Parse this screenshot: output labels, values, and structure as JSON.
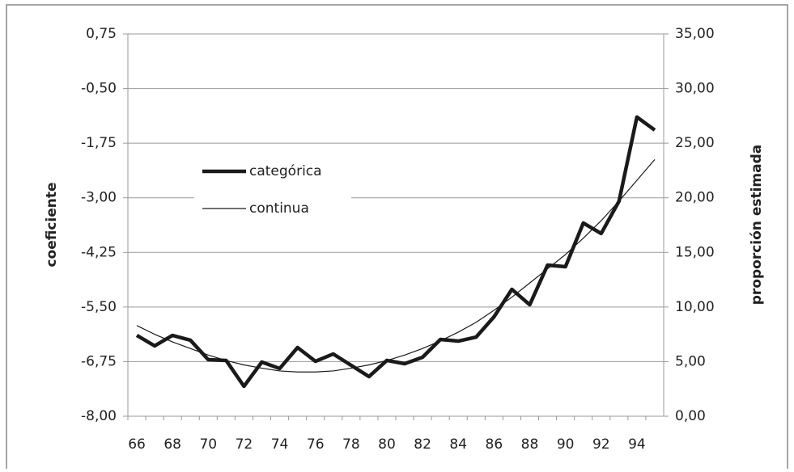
{
  "chart_data": {
    "type": "line",
    "categories": [
      "66",
      null,
      "68",
      null,
      "70",
      null,
      "72",
      null,
      "74",
      null,
      "76",
      null,
      "78",
      null,
      "80",
      null,
      "82",
      null,
      "84",
      null,
      "86",
      null,
      "88",
      null,
      "90",
      null,
      "92",
      null,
      "94",
      null
    ],
    "series": [
      {
        "name": "categórica",
        "color": "#1a1a1a",
        "axis": "y2",
        "values": [
          7.4,
          6.44,
          7.4,
          6.96,
          5.18,
          5.11,
          2.74,
          4.96,
          4.37,
          6.29,
          5.03,
          5.7,
          4.66,
          3.63,
          5.11,
          4.81,
          5.4,
          7.03,
          6.88,
          7.25,
          9.1,
          11.62,
          10.21,
          13.84,
          13.69,
          17.69,
          16.73,
          19.69,
          27.39,
          26.2
        ]
      },
      {
        "name": "continua",
        "color": "#1a1a1a",
        "axis": "y2",
        "values": [
          8.3,
          7.5,
          6.8,
          6.2,
          5.6,
          5.1,
          4.7,
          4.4,
          4.15,
          4.05,
          4.05,
          4.15,
          4.4,
          4.7,
          5.1,
          5.6,
          6.2,
          6.9,
          7.7,
          8.6,
          9.7,
          10.9,
          12.2,
          13.5,
          14.8,
          16.3,
          17.9,
          19.7,
          21.6,
          23.5
        ]
      }
    ],
    "ylabel": "coeficiente",
    "y2label": "proporción estimada",
    "ylim": [
      -8,
      0.75
    ],
    "yticks": [
      {
        "value": -8,
        "label": "-8,00"
      },
      {
        "value": -6.75,
        "label": "-6,75"
      },
      {
        "value": -5.5,
        "label": "-5,50"
      },
      {
        "value": -4.25,
        "label": "-4,25"
      },
      {
        "value": -3,
        "label": "-3,00"
      },
      {
        "value": -1.75,
        "label": "-1,75"
      },
      {
        "value": -0.5,
        "label": "-0,50"
      },
      {
        "value": 0.75,
        "label": "0,75"
      }
    ],
    "y2lim": [
      0,
      35
    ],
    "y2ticks": [
      {
        "value": 0,
        "label": "0,00"
      },
      {
        "value": 5,
        "label": "5,00"
      },
      {
        "value": 10,
        "label": "10,00"
      },
      {
        "value": 15,
        "label": "15,00"
      },
      {
        "value": 20,
        "label": "20,00"
      },
      {
        "value": 25,
        "label": "25,00"
      },
      {
        "value": 30,
        "label": "30,00"
      },
      {
        "value": 35,
        "label": "35,00"
      }
    ],
    "grid": true,
    "legend": "upper left"
  }
}
